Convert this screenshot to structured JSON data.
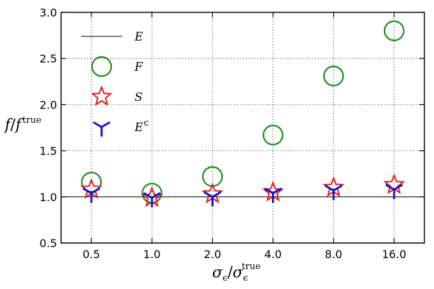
{
  "chart_data": {
    "type": "scatter",
    "title": "",
    "x": [
      "0.5",
      "1.0",
      "2.0",
      "4.0",
      "8.0",
      "16.0"
    ],
    "ylim": [
      0.5,
      3.0
    ],
    "yticks": [
      "0.5",
      "1.0",
      "1.5",
      "2.0",
      "2.5",
      "3.0"
    ],
    "grid": true,
    "legend_location": "upper-left",
    "xlabel": {
      "main": "σ",
      "sub": "ϵ",
      "sep": "/",
      "main2": "σ",
      "sub2": "ϵ",
      "sup2": "true"
    },
    "ylabel": {
      "main": "f",
      "sep": "/",
      "main2": "f",
      "sup2": "true"
    },
    "series": [
      {
        "name": "E",
        "label": "E",
        "marker": "line",
        "color": "#000000",
        "values": [
          1.0,
          1.0,
          1.0,
          1.0,
          1.0,
          1.0
        ]
      },
      {
        "name": "F",
        "label": "F",
        "marker": "circle",
        "color": "#1a8a1a",
        "values": [
          1.16,
          1.04,
          1.22,
          1.67,
          2.31,
          2.8
        ]
      },
      {
        "name": "S",
        "label": "S",
        "marker": "star",
        "color": "#e8191f",
        "values": [
          1.08,
          0.99,
          1.03,
          1.05,
          1.1,
          1.13
        ]
      },
      {
        "name": "Ec",
        "label": "E",
        "label_sup": "c",
        "marker": "tri_down",
        "color": "#1515c8",
        "values": [
          1.04,
          0.99,
          1.0,
          1.04,
          1.07,
          1.08
        ]
      }
    ]
  }
}
